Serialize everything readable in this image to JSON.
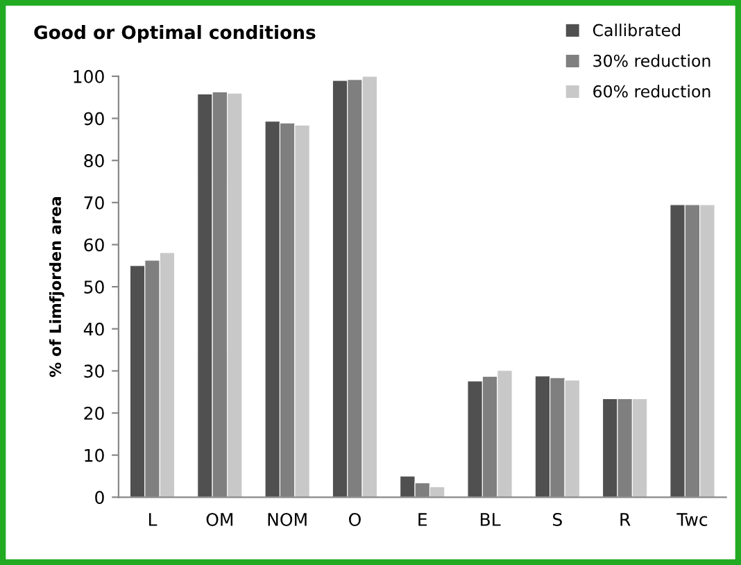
{
  "chart_data": {
    "type": "bar",
    "title": "Good or Optimal conditions",
    "ylabel": "% of Limfjorden area",
    "categories": [
      "L",
      "OM",
      "NOM",
      "O",
      "E",
      "BL",
      "S",
      "R",
      "Twc"
    ],
    "series": [
      {
        "name": "Callibrated",
        "color": "#505050",
        "values": [
          55.0,
          95.8,
          89.3,
          99.0,
          5.0,
          27.6,
          28.8,
          23.4,
          69.5
        ]
      },
      {
        "name": "30% reduction",
        "color": "#7f7f7f",
        "values": [
          56.3,
          96.3,
          88.9,
          99.2,
          3.4,
          28.7,
          28.4,
          23.4,
          69.5
        ]
      },
      {
        "name": "60% reduction",
        "color": "#c8c8c8",
        "values": [
          58.1,
          96.0,
          88.4,
          100.0,
          2.5,
          30.1,
          27.8,
          23.4,
          69.5
        ]
      }
    ],
    "ylim": [
      0,
      100
    ],
    "yticks": [
      0,
      10,
      20,
      30,
      40,
      50,
      60,
      70,
      80,
      90,
      100
    ],
    "grid": false,
    "legend": "top right"
  }
}
